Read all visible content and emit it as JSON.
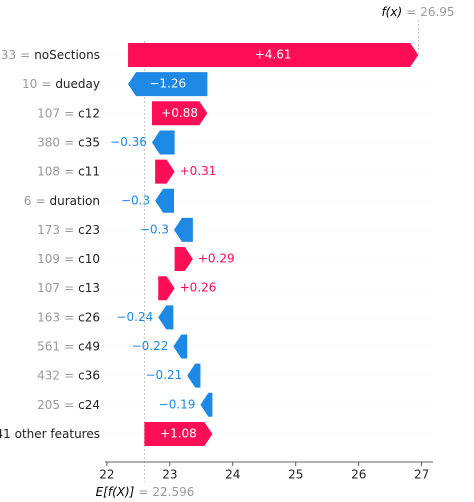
{
  "chart_data": {
    "type": "waterfall",
    "features": [
      "noSections",
      "dueday",
      "c12",
      "c35",
      "c11",
      "duration",
      "c23",
      "c10",
      "c13",
      "c26",
      "c49",
      "c36",
      "c24",
      "41 other features"
    ],
    "feature_values": [
      "33",
      "10",
      "107",
      "380",
      "108",
      "6",
      "173",
      "109",
      "107",
      "163",
      "561",
      "432",
      "205",
      null
    ],
    "separator": "=",
    "values": [
      4.61,
      -1.26,
      0.88,
      -0.36,
      0.31,
      -0.3,
      -0.3,
      0.29,
      0.26,
      -0.24,
      -0.22,
      -0.21,
      -0.19,
      1.08
    ],
    "value_labels": [
      "+4.61",
      "−1.26",
      "+0.88",
      "−0.36",
      "+0.31",
      "−0.3",
      "−0.3",
      "+0.29",
      "+0.26",
      "−0.24",
      "−0.22",
      "−0.21",
      "−0.19",
      "+1.08"
    ],
    "base_label": "E[f(X)]",
    "base_value": 22.596,
    "output_label": "f(x)",
    "output_value": 26.95,
    "positive_color": "#ff0d57",
    "negative_color": "#1e88e5",
    "xlim": [
      21.97,
      27.18
    ],
    "xticks": [
      22,
      23,
      24,
      25,
      26,
      27
    ]
  }
}
